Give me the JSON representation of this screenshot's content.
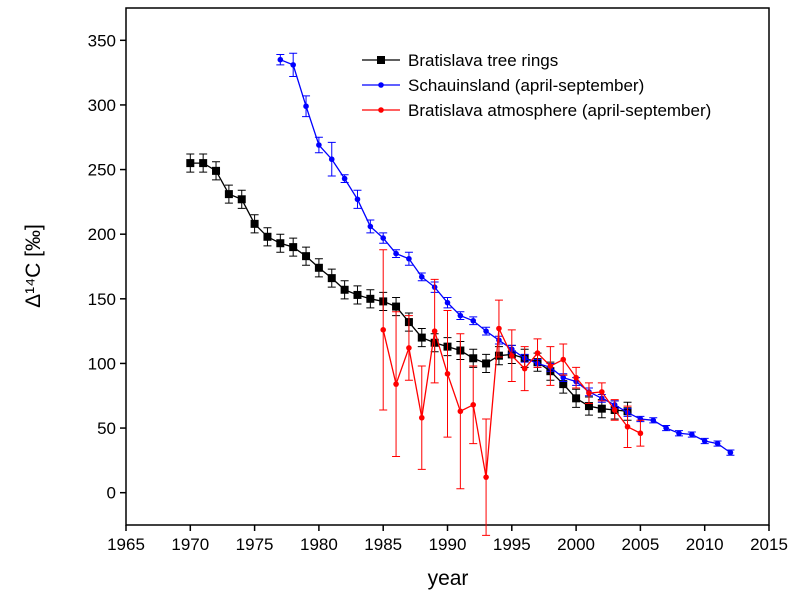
{
  "chart_data": {
    "type": "line",
    "x_label": "year",
    "y_label": "Δ¹⁴C [‰]",
    "xlim": [
      1965,
      2015
    ],
    "xticks": [
      1965,
      1970,
      1975,
      1980,
      1985,
      1990,
      1995,
      2000,
      2005,
      2010,
      2015
    ],
    "ylim": [
      -25,
      375
    ],
    "yticks": [
      0,
      50,
      100,
      150,
      200,
      250,
      300,
      350
    ],
    "grid": false,
    "legend": "top",
    "series": [
      {
        "name": "Bratislava tree rings",
        "color": "#000000",
        "marker": "square",
        "x": [
          1970,
          1971,
          1972,
          1973,
          1974,
          1975,
          1976,
          1977,
          1978,
          1979,
          1980,
          1981,
          1982,
          1983,
          1984,
          1985,
          1986,
          1987,
          1988,
          1989,
          1990,
          1991,
          1992,
          1993,
          1994,
          1995,
          1996,
          1997,
          1998,
          1999,
          2000,
          2001,
          2002,
          2003,
          2004
        ],
        "values": [
          255,
          255,
          249,
          231,
          227,
          208,
          198,
          193,
          190,
          183,
          174,
          166,
          157,
          153,
          150,
          148,
          144,
          132,
          120,
          116,
          113,
          110,
          104,
          100,
          106,
          107,
          104,
          101,
          94,
          84,
          73,
          67,
          65,
          64,
          63
        ],
        "errors": [
          7,
          7,
          7,
          7,
          7,
          7,
          7,
          7,
          7,
          7,
          7,
          7,
          7,
          7,
          7,
          7,
          7,
          7,
          7,
          7,
          7,
          7,
          7,
          7,
          7,
          7,
          7,
          7,
          7,
          7,
          7,
          7,
          7,
          7,
          7
        ]
      },
      {
        "name": "Schauinsland (april-september)",
        "color": "#0000ff",
        "marker": "circle",
        "x": [
          1977,
          1978,
          1979,
          1980,
          1981,
          1982,
          1983,
          1984,
          1985,
          1986,
          1987,
          1988,
          1989,
          1990,
          1991,
          1992,
          1993,
          1994,
          1995,
          1996,
          1997,
          1998,
          1999,
          2000,
          2001,
          2002,
          2003,
          2004,
          2005,
          2006,
          2007,
          2008,
          2009,
          2010,
          2011,
          2012
        ],
        "values": [
          335,
          331,
          299,
          269,
          258,
          243,
          227,
          206,
          197,
          185,
          181,
          167,
          159,
          147,
          137,
          133,
          125,
          118,
          111,
          104,
          100,
          97,
          89,
          86,
          78,
          73,
          68,
          62,
          57,
          56,
          50,
          46,
          45,
          40,
          38,
          31
        ],
        "errors": [
          4,
          9,
          8,
          6,
          13,
          3,
          7,
          5,
          4,
          3,
          5,
          3,
          4,
          4,
          3,
          3,
          3,
          3,
          3,
          3,
          3,
          3,
          3,
          3,
          3,
          3,
          3,
          3,
          2,
          2,
          2,
          2,
          2,
          2,
          2,
          2
        ]
      },
      {
        "name": "Bratislava atmosphere (april-september)",
        "color": "#ff0000",
        "marker": "circle",
        "x": [
          1985,
          1986,
          1987,
          1988,
          1989,
          1990,
          1991,
          1992,
          1993,
          1994,
          1995,
          1996,
          1997,
          1998,
          1999,
          2000,
          2001,
          2002,
          2003,
          2004,
          2005
        ],
        "values": [
          126,
          84,
          112,
          58,
          125,
          92,
          63,
          68,
          12,
          127,
          106,
          96,
          108,
          98,
          103,
          89,
          77,
          78,
          64,
          51,
          46
        ],
        "errors": [
          62,
          56,
          25,
          40,
          40,
          49,
          60,
          30,
          45,
          22,
          20,
          17,
          11,
          15,
          12,
          8,
          8,
          7,
          8,
          16,
          10
        ]
      }
    ]
  }
}
